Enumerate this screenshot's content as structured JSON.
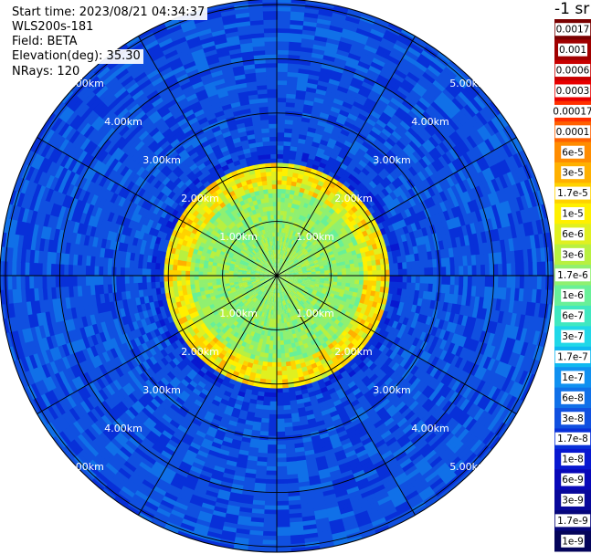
{
  "header": {
    "start_time": "Start time: 2023/08/21 04:34:37",
    "instrument": "WLS200s-181",
    "field": "Field: BETA",
    "elevation": "Elevation(deg): 35.30",
    "nrays": "NRays: 120"
  },
  "chart_data": {
    "type": "heatmap",
    "projection": "polar",
    "field": "BETA",
    "n_rays": 120,
    "elevation_deg": 35.3,
    "range_rings_km": [
      1,
      2,
      3,
      4,
      5
    ],
    "ring_labels": [
      "1.00km",
      "2.00km",
      "3.00km",
      "4.00km",
      "5.00km"
    ],
    "max_range_km": 5.0,
    "spoke_angles_deg": [
      0,
      30,
      60,
      90,
      120,
      150,
      180,
      210,
      240,
      270,
      300,
      330
    ],
    "colorbar": {
      "title": "-1 sr",
      "tick_labels": [
        "0.0017",
        "0.001",
        "0.0006",
        "0.0003",
        "0.00017",
        "0.0001",
        "6e-5",
        "3e-5",
        "1.7e-5",
        "1e-5",
        "6e-6",
        "3e-6",
        "1.7e-6",
        "1e-6",
        "6e-7",
        "3e-7",
        "1.7e-7",
        "1e-7",
        "6e-8",
        "3e-8",
        "1.7e-8",
        "1e-8",
        "6e-9",
        "3e-9",
        "1.7e-9",
        "1e-9"
      ],
      "colors": [
        "#7a0000",
        "#a00000",
        "#c80000",
        "#e80000",
        "#ff3000",
        "#ff6000",
        "#ff8c00",
        "#ffb000",
        "#ffd200",
        "#fff000",
        "#e0f020",
        "#b8f040",
        "#90f070",
        "#68f098",
        "#40e8c0",
        "#20d8e8",
        "#10b8f0",
        "#1090f0",
        "#1070e8",
        "#1050e0",
        "#0830d8",
        "#0818d0",
        "#0808b8",
        "#08089a",
        "#06067a",
        "#04045a"
      ]
    },
    "bands": [
      {
        "r_from_km": 0.0,
        "r_to_km": 1.6,
        "value": "1.7e-6"
      },
      {
        "r_from_km": 1.6,
        "r_to_km": 2.1,
        "value": "1e-5"
      },
      {
        "r_from_km": 2.1,
        "r_to_km": 2.3,
        "value": "1.7e-8"
      },
      {
        "r_from_km": 2.3,
        "r_to_km": 5.2,
        "value": "3e-8"
      }
    ]
  }
}
